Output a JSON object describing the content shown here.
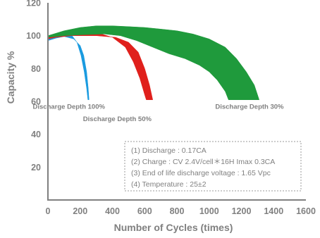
{
  "chart_data": {
    "type": "area",
    "xlabel": "Number of Cycles (times)",
    "ylabel": "Capacity %",
    "xlim": [
      0,
      1600
    ],
    "ylim": [
      0,
      120
    ],
    "x_ticks": [
      "0",
      "200",
      "400",
      "600",
      "800",
      "1000",
      "1200",
      "1400",
      "1600"
    ],
    "y_ticks": [
      "20",
      "40",
      "60",
      "80",
      "100",
      "120"
    ],
    "grid": false,
    "series": [
      {
        "name": "Discharge Depth 100%",
        "color": "#1a9be0",
        "points": [
          [
            0,
            99
          ],
          [
            50,
            100.5
          ],
          [
            100,
            101
          ],
          [
            150,
            100
          ],
          [
            180,
            96
          ],
          [
            205,
            88
          ],
          [
            225,
            78
          ],
          [
            240,
            68
          ],
          [
            248,
            61
          ],
          [
            255,
            61
          ],
          [
            250,
            68
          ],
          [
            240,
            78
          ],
          [
            222,
            88
          ],
          [
            200,
            94
          ],
          [
            160,
            98
          ],
          [
            100,
            99.5
          ],
          [
            50,
            98.5
          ],
          [
            0,
            97
          ]
        ]
      },
      {
        "name": "Discharge Depth 50%",
        "color": "#e0201c",
        "points": [
          [
            0,
            100
          ],
          [
            100,
            102
          ],
          [
            200,
            103
          ],
          [
            300,
            102
          ],
          [
            400,
            99
          ],
          [
            480,
            93
          ],
          [
            530,
            84
          ],
          [
            570,
            74
          ],
          [
            600,
            64
          ],
          [
            610,
            61
          ],
          [
            650,
            61
          ],
          [
            630,
            70
          ],
          [
            600,
            80
          ],
          [
            560,
            90
          ],
          [
            500,
            96
          ],
          [
            420,
            99
          ],
          [
            300,
            100
          ],
          [
            150,
            100
          ],
          [
            50,
            99
          ],
          [
            0,
            98
          ]
        ]
      },
      {
        "name": "Discharge Depth 30%",
        "color": "#1f9a3c",
        "points": [
          [
            0,
            100
          ],
          [
            100,
            103
          ],
          [
            200,
            105
          ],
          [
            300,
            106
          ],
          [
            400,
            106
          ],
          [
            500,
            105.5
          ],
          [
            600,
            105
          ],
          [
            700,
            104
          ],
          [
            800,
            103
          ],
          [
            900,
            101
          ],
          [
            1000,
            98
          ],
          [
            1100,
            93
          ],
          [
            1170,
            86
          ],
          [
            1230,
            78
          ],
          [
            1280,
            70
          ],
          [
            1310,
            61
          ],
          [
            1120,
            61
          ],
          [
            1100,
            66
          ],
          [
            1050,
            73
          ],
          [
            1000,
            78
          ],
          [
            940,
            82
          ],
          [
            850,
            86
          ],
          [
            750,
            89
          ],
          [
            650,
            93
          ],
          [
            550,
            97
          ],
          [
            450,
            100
          ],
          [
            350,
            101
          ],
          [
            200,
            100.5
          ],
          [
            100,
            100
          ],
          [
            0,
            99
          ]
        ]
      }
    ],
    "annotations": [
      {
        "text": "Discharge Depth 100%",
        "x": 130,
        "y": 55.5
      },
      {
        "text": "Discharge Depth 50%",
        "x": 430,
        "y": 48
      },
      {
        "text": "Discharge Depth 30%",
        "x": 1250,
        "y": 55.5
      }
    ],
    "conditions": [
      "(1) Discharge : 0.17CA",
      "(2) Charge : CV 2.4V/cell＊16H Imax 0.3CA",
      "(3) End of life discharge voltage : 1.65 Vpc",
      "(4) Temperature : 25±2"
    ]
  }
}
